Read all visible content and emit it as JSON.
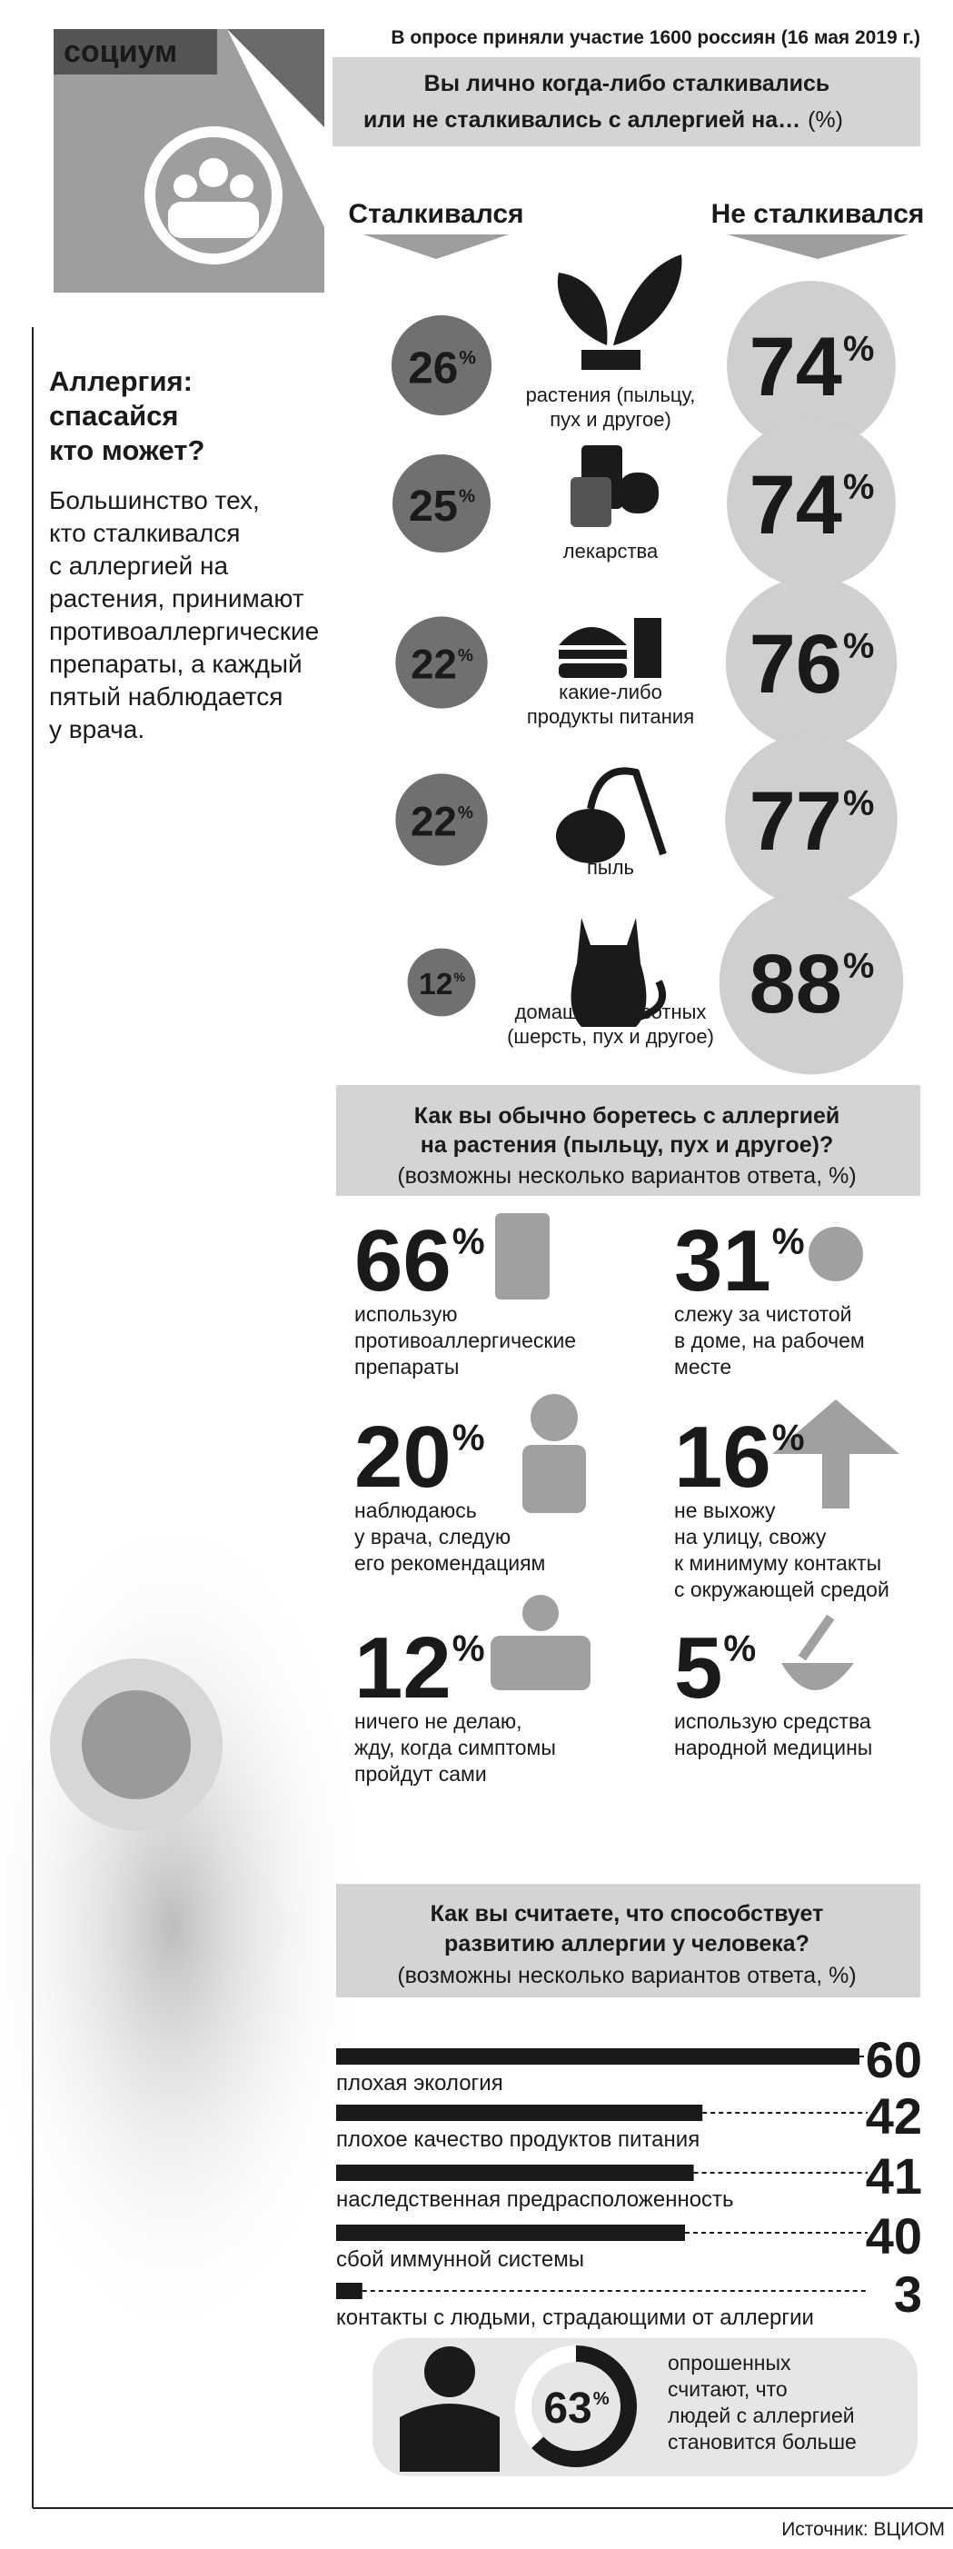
{
  "header": {
    "rubric": "социум",
    "survey_note": "В опросе приняли участие 1600 россиян (16 мая 2019 г.)"
  },
  "unit": "%",
  "intro": {
    "title": [
      "Аллергия:",
      "спасайся",
      "кто может?"
    ],
    "text": [
      "Большинство тех,",
      "кто сталкивался",
      "с аллергией на",
      "растения, принимают",
      "противоаллергические",
      "препараты, а каждый",
      "пятый наблюдается",
      "у врача."
    ]
  },
  "section1": {
    "question": [
      "Вы лично когда-либо сталкивались",
      "или не сталкивались с аллергией на…"
    ],
    "question_unit": "(%)",
    "col_yes": "Сталкивался",
    "col_no": "Не сталкивался",
    "rows": [
      {
        "label": [
          "растения (пыльцу,",
          "пух и другое)"
        ],
        "yes": 26,
        "no": 74
      },
      {
        "label": [
          "лекарства"
        ],
        "yes": 25,
        "no": 74
      },
      {
        "label": [
          "какие-либо",
          "продукты питания"
        ],
        "yes": 22,
        "no": 76
      },
      {
        "label": [
          "пыль"
        ],
        "yes": 22,
        "no": 77
      },
      {
        "label": [
          "домашних животных",
          "(шерсть, пух и другое)"
        ],
        "yes": 12,
        "no": 88
      }
    ]
  },
  "section2": {
    "question": [
      "Как вы обычно боретесь с аллергией",
      "на растения (пыльцу, пух и другое)?"
    ],
    "note": "(возможны несколько вариантов ответа, %)",
    "items": [
      {
        "value": 66,
        "label": [
          "использую",
          "противоаллергические",
          "препараты"
        ]
      },
      {
        "value": 31,
        "label": [
          "слежу за чистотой",
          "в доме, на рабочем",
          "месте"
        ]
      },
      {
        "value": 20,
        "label": [
          "наблюдаюсь",
          "у врача, следую",
          "его рекомендациям"
        ]
      },
      {
        "value": 16,
        "label": [
          "не выхожу",
          "на улицу, свожу",
          "к минимуму контакты",
          "с окружающей средой"
        ]
      },
      {
        "value": 12,
        "label": [
          "ничего не делаю,",
          "жду, когда симптомы",
          "пройдут сами"
        ]
      },
      {
        "value": 5,
        "label": [
          "использую средства",
          "народной медицины"
        ]
      }
    ]
  },
  "section3": {
    "question": [
      "Как вы считаете, что способствует",
      "развитию аллергии у человека?"
    ],
    "note": "(возможны несколько вариантов ответа, %)",
    "bars": [
      {
        "label": "плохая экология",
        "value": 60
      },
      {
        "label": "плохое качество продуктов питания",
        "value": 42
      },
      {
        "label": "наследственная предрасположенность",
        "value": 41
      },
      {
        "label": "сбой иммунной системы",
        "value": 40
      },
      {
        "label": "контакты с людьми, страдающими от аллергии",
        "value": 3
      }
    ]
  },
  "footer_stat": {
    "value": 63,
    "text": [
      "опрошенных",
      "считают, что",
      "людей с аллергией",
      "становится больше"
    ]
  },
  "source": "Источник: ВЦИОМ"
}
